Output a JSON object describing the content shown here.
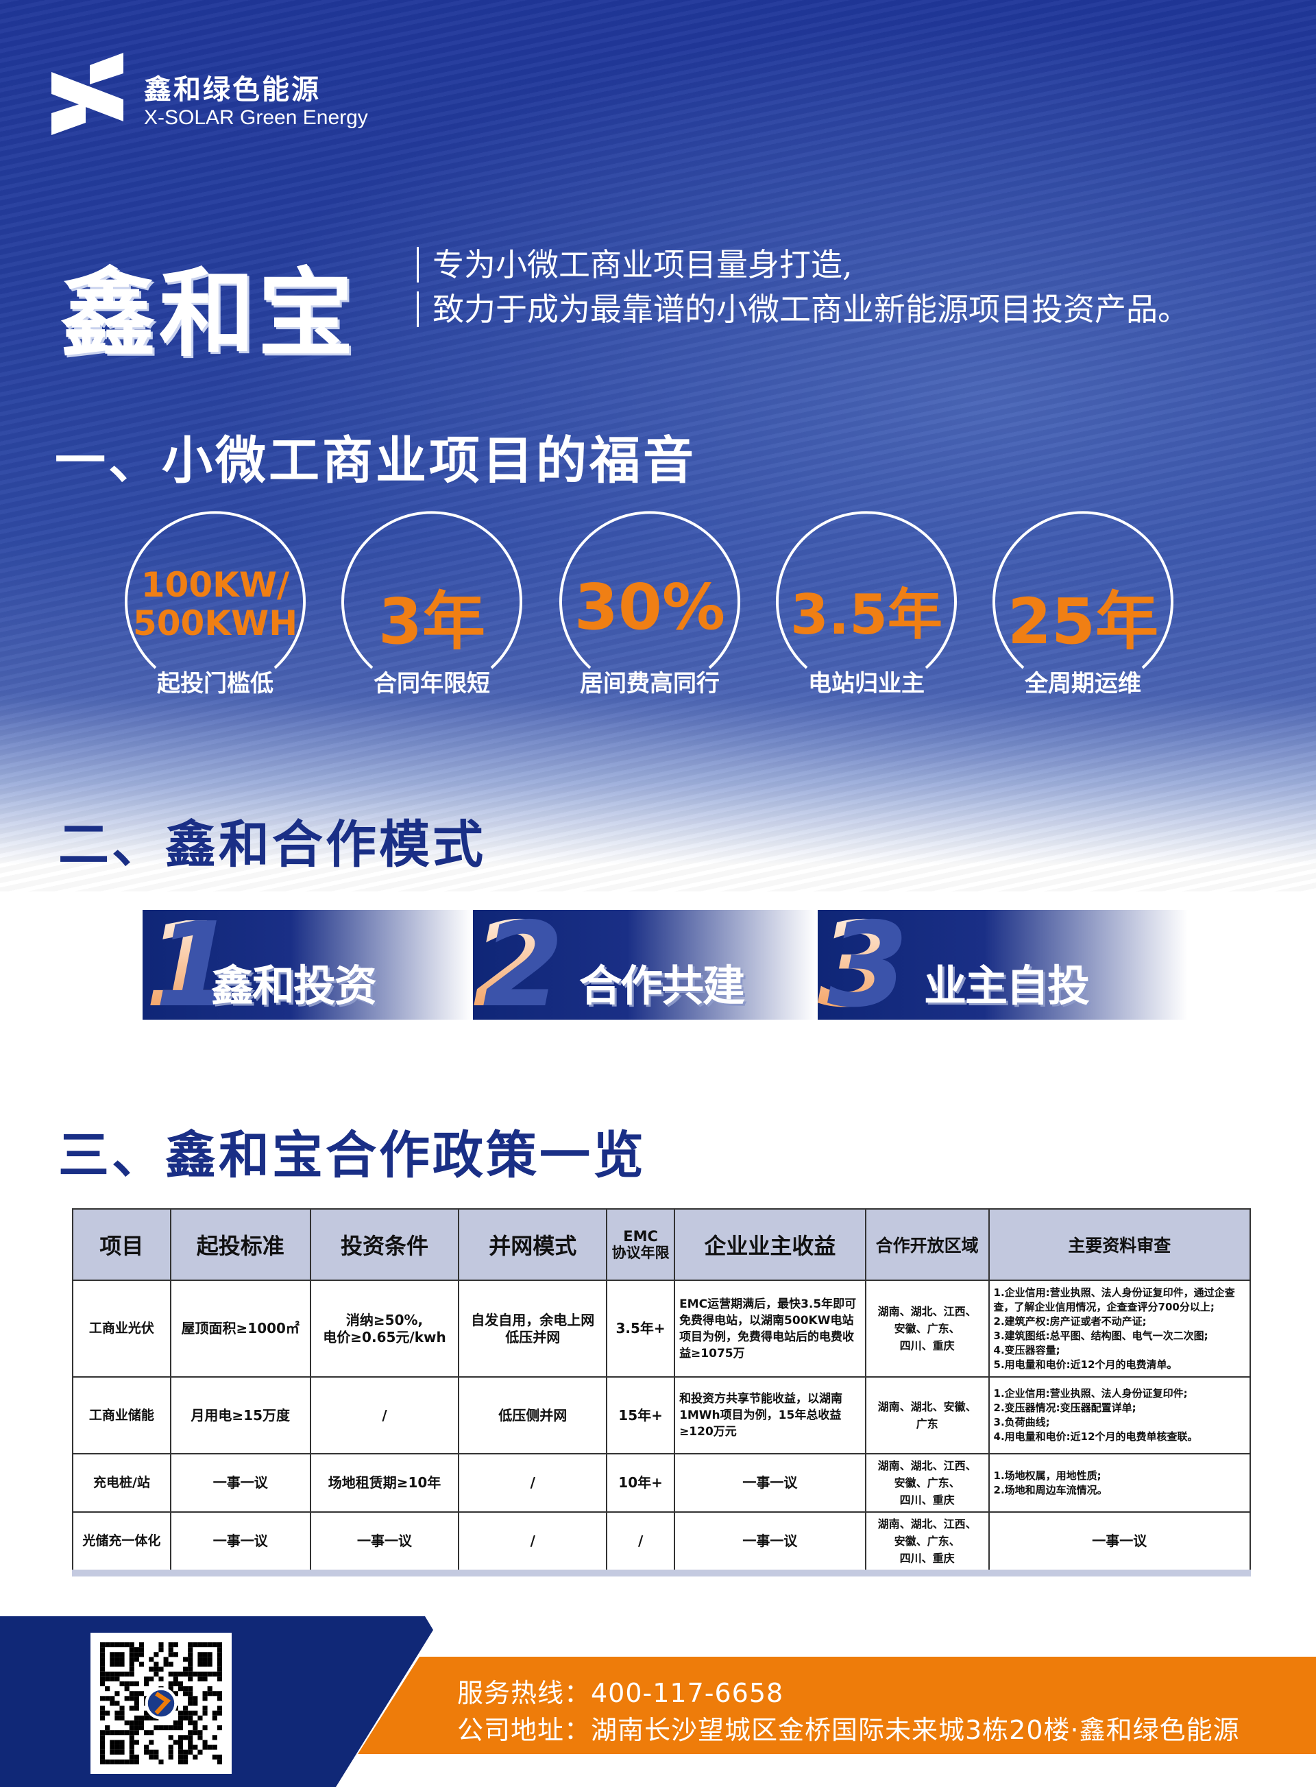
{
  "brand": {
    "name_cn": "鑫和绿色能源",
    "name_en": "X-SOLAR Green Energy",
    "logo_icon": "x-logo-icon"
  },
  "hero": {
    "title": "鑫和宝",
    "slogan_1": "专为小微工商业项目量身打造,",
    "slogan_2": "致力于成为最靠谱的小微工商业新能源项目投资产品。"
  },
  "section1": {
    "title": "一、小微工商业项目的福音",
    "items": [
      {
        "value_1": "100KW/",
        "value_2": "500KWH",
        "label": "起投门槛低"
      },
      {
        "value_1": "3年",
        "label": "合同年限短"
      },
      {
        "value_1": "30%",
        "label": "居间费高同行"
      },
      {
        "value_1": "3.5年",
        "label": "电站归业主"
      },
      {
        "value_1": "25年",
        "label": "全周期运维"
      }
    ]
  },
  "section2": {
    "title": "二、鑫和合作模式",
    "modes": [
      {
        "num": "1",
        "label": "鑫和投资"
      },
      {
        "num": "2",
        "label": "合作共建"
      },
      {
        "num": "3",
        "label": "业主自投"
      }
    ]
  },
  "section3": {
    "title": "三、鑫和宝合作政策一览",
    "headers": [
      "项目",
      "起投标准",
      "投资条件",
      "并网模式",
      "EMC\n协议年限",
      "企业业主收益",
      "合作开放区域",
      "主要资料审查"
    ],
    "rows": [
      [
        "工商业光伏",
        "屋顶面积≥1000㎡",
        "消纳≥50%,\n电价≥0.65元/kwh",
        "自发自用，余电上网\n低压并网",
        "3.5年+",
        "EMC运营期满后，最快3.5年即可免费得电站，以湖南500KW电站项目为例，免费得电站后的电费收益≥1075万",
        "湖南、湖北、江西、\n安徽、广东、\n四川、重庆",
        "1.企业信用:营业执照、法人身份证复印件，通过企查查，了解企业信用情况，企查查评分700分以上;\n2.建筑产权:房产证或者不动产证;\n3.建筑图纸:总平图、结构图、电气一次二次图;\n4.变压器容量;\n5.用电量和电价:近12个月的电费清单。"
      ],
      [
        "工商业储能",
        "月用电≥15万度",
        "/",
        "低压侧并网",
        "15年+",
        "和投资方共享节能收益，以湖南1MWh项目为例，15年总收益≥120万元",
        "湖南、湖北、安徽、\n广东",
        "1.企业信用:营业执照、法人身份证复印件;\n2.变压器情况:变压器配置详单;\n3.负荷曲线;\n4.用电量和电价:近12个月的电费单核查联。"
      ],
      [
        "充电桩/站",
        "一事一议",
        "场地租赁期≥10年",
        "/",
        "10年+",
        "一事一议",
        "湖南、湖北、江西、\n安徽、广东、\n四川、重庆",
        "1.场地权属，用地性质;\n2.场地和周边车流情况。"
      ],
      [
        "光储充一体化",
        "一事一议",
        "一事一议",
        "/",
        "/",
        "一事一议",
        "湖南、湖北、江西、\n安徽、广东、\n四川、重庆",
        "一事一议"
      ]
    ]
  },
  "footer": {
    "hotline": "服务热线：400-117-6658",
    "address": "公司地址：湖南长沙望城区金桥国际未来城3栋20楼·鑫和绿色能源",
    "qr_icon": "qr-code-icon"
  },
  "colors": {
    "brand_blue": "#1a2f86",
    "accent_orange": "#ee7c0a",
    "table_header": "#c2c8de"
  }
}
